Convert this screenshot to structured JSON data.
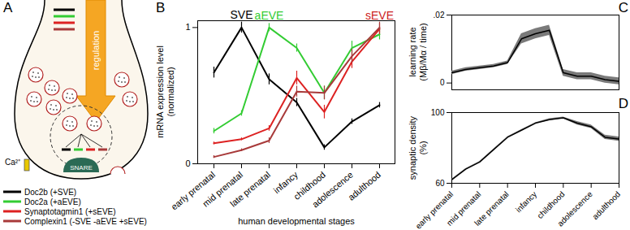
{
  "chart_data": [
    {
      "type": "line",
      "title": "B",
      "categories": [
        "early prenatal",
        "mid prenatal",
        "late prenatal",
        "infancy",
        "childhood",
        "adolescence",
        "adulthood"
      ],
      "xlabel": "human developmental stages",
      "ylabel": "mRNA expression level (normalized)",
      "ylim": [
        0,
        1.05
      ],
      "yticks": [
        0,
        1
      ],
      "series": [
        {
          "name": "Doc2b (+SVE)",
          "color": "#000000",
          "values": [
            0.67,
            1.0,
            0.62,
            0.45,
            0.12,
            0.31,
            0.43
          ],
          "error": [
            0.04,
            0.04,
            0.04,
            0.03,
            0.02,
            0.02,
            0.02
          ]
        },
        {
          "name": "Doc2a (+aEVE)",
          "color": "#33cc33",
          "values": [
            0.24,
            0.37,
            1.0,
            0.85,
            0.52,
            0.85,
            0.95
          ],
          "error": [
            0.02,
            0.02,
            0.03,
            0.03,
            0.05,
            0.05,
            0.04
          ]
        },
        {
          "name": "Synaptotagmin1 (+sEVE)",
          "color": "#dd2222",
          "values": [
            0.15,
            0.18,
            0.26,
            0.63,
            0.38,
            0.75,
            0.99
          ],
          "error": [
            0.01,
            0.01,
            0.02,
            0.05,
            0.05,
            0.05,
            0.04
          ]
        },
        {
          "name": "Complexin1 (-SVE -aEVE +sEVE)",
          "color": "#a83a3a",
          "values": [
            0.05,
            0.1,
            0.17,
            0.53,
            0.52,
            0.79,
            1.0
          ],
          "error": [
            0.01,
            0.01,
            0.02,
            0.04,
            0.05,
            0.05,
            0.04
          ]
        }
      ],
      "annotations": [
        {
          "text": "SVE",
          "color": "#000000"
        },
        {
          "text": "aEVE",
          "color": "#33cc33"
        },
        {
          "text": "sEVE",
          "color": "#cc2222"
        }
      ]
    },
    {
      "type": "line",
      "title": "C",
      "ylabel": "learning rate (Mβ/Mα / time)",
      "x": [
        0,
        0.5,
        1,
        1.5,
        2,
        2.5,
        3,
        3.5,
        4,
        4.5,
        5,
        5.5,
        6
      ],
      "values": [
        0.003,
        0.004,
        0.0045,
        0.005,
        0.006,
        0.013,
        0.0145,
        0.0155,
        0.003,
        0.002,
        0.002,
        0.001,
        0.0005
      ],
      "error": [
        0.0005,
        0.0005,
        0.0005,
        0.0005,
        0.0005,
        0.0015,
        0.0015,
        0.0015,
        0.001,
        0.001,
        0.001,
        0.001,
        0.001
      ],
      "color": "#000000",
      "xlim": [
        0,
        6
      ],
      "ylim": [
        -0.002,
        0.02
      ],
      "yticks": [
        0,
        {
          "value": 0.02,
          "label": ".02"
        }
      ],
      "tick_labels": "y"
    },
    {
      "type": "line",
      "title": "D",
      "ylabel": "synaptic density (%)",
      "x": [
        0,
        0.5,
        1,
        1.5,
        2,
        2.5,
        3,
        3.5,
        4,
        4.5,
        5,
        5.5,
        6
      ],
      "values": [
        62,
        68,
        72,
        79,
        86,
        90,
        94,
        96,
        97,
        94,
        92,
        86,
        85
      ],
      "error": [
        0.3,
        0.3,
        0.3,
        0.3,
        0.3,
        0.3,
        0.3,
        0.5,
        0.5,
        1,
        1,
        1.2,
        1.2
      ],
      "color": "#000000",
      "xlim": [
        0,
        6
      ],
      "ylim": [
        60,
        100
      ],
      "yticks": [
        60,
        100
      ],
      "xticks": [
        {
          "value": 0,
          "label": "early prenatal"
        },
        {
          "value": 1,
          "label": "mid prenatal"
        },
        {
          "value": 2,
          "label": "late prenatal"
        },
        {
          "value": 3,
          "label": "infancy"
        },
        {
          "value": 4,
          "label": "childhood"
        },
        {
          "value": 5,
          "label": "adolescence"
        },
        {
          "value": 6,
          "label": "adulthood"
        }
      ]
    }
  ],
  "diagram": {
    "title": "A",
    "arrow": {
      "label": "regulation"
    },
    "complex": {
      "label": "SNARE"
    },
    "channel": {
      "label": "Ca²⁺"
    }
  }
}
